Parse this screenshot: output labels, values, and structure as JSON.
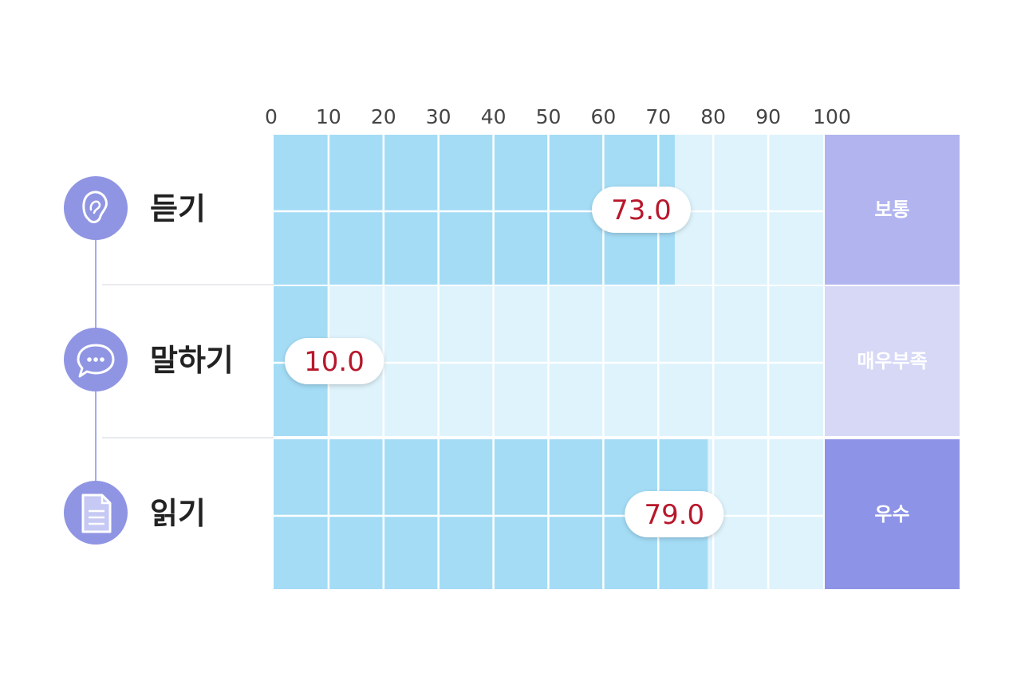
{
  "chart_data": {
    "type": "bar",
    "orientation": "horizontal",
    "xlim": [
      0,
      100
    ],
    "ticks": [
      "0",
      "10",
      "20",
      "30",
      "40",
      "50",
      "60",
      "70",
      "80",
      "90",
      "100"
    ],
    "categories": [
      "듣기",
      "말하기",
      "읽기"
    ],
    "values": [
      73.0,
      10.0,
      79.0
    ],
    "value_labels": [
      "73.0",
      "10.0",
      "79.0"
    ],
    "grades": [
      "보통",
      "매우부족",
      "우수"
    ],
    "icons": [
      "ear-icon",
      "speech-bubble-icon",
      "document-icon"
    ],
    "colors": {
      "bar": "#a4dcf6",
      "track": "#def3fc",
      "grid": "#ffffff",
      "icon_circle": "#8f95e3",
      "connector": "#a3abe8",
      "value_text": "#b8172b",
      "label_text": "#222222",
      "tick_text": "#444444",
      "grade_text": "#ffffff",
      "grade_fills": [
        "#b1b4ee",
        "#d6d8f6",
        "#8d93e6"
      ]
    }
  }
}
